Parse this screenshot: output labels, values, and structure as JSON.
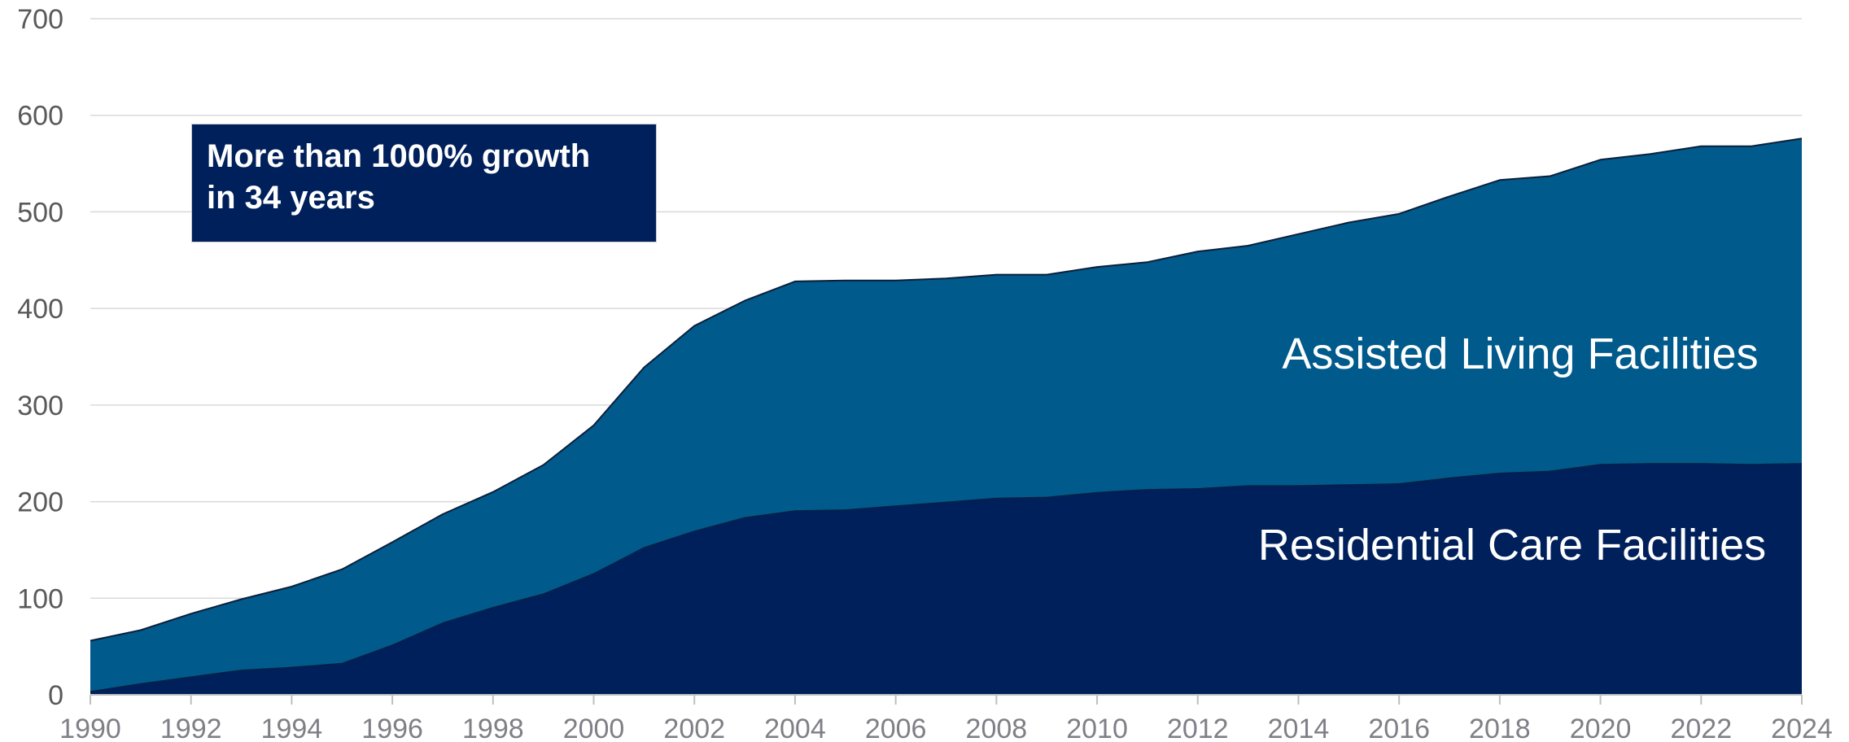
{
  "chart_data": {
    "type": "area",
    "stacked": true,
    "x": [
      1990,
      1991,
      1992,
      1993,
      1994,
      1995,
      1996,
      1997,
      1998,
      1999,
      2000,
      2001,
      2002,
      2003,
      2004,
      2005,
      2006,
      2007,
      2008,
      2009,
      2010,
      2011,
      2012,
      2013,
      2014,
      2015,
      2016,
      2017,
      2018,
      2019,
      2020,
      2021,
      2022,
      2023,
      2024
    ],
    "x_ticks": [
      "1990",
      "1992",
      "1994",
      "1996",
      "1998",
      "2000",
      "2002",
      "2004",
      "2006",
      "2008",
      "2010",
      "2012",
      "2014",
      "2016",
      "2018",
      "2020",
      "2022",
      "2024"
    ],
    "y_ticks": [
      "0",
      "100",
      "200",
      "300",
      "400",
      "500",
      "600",
      "700"
    ],
    "ylim": [
      0,
      700
    ],
    "grid": "horizontal",
    "series": [
      {
        "name": "Residential Care Facilities",
        "color": "#00205b",
        "values": [
          4,
          12,
          19,
          26,
          29,
          33,
          52,
          75,
          91,
          105,
          126,
          153,
          170,
          184,
          191,
          192,
          196,
          200,
          204,
          205,
          210,
          213,
          214,
          217,
          217,
          218,
          219,
          225,
          230,
          232,
          239,
          240,
          240,
          239,
          240
        ]
      },
      {
        "name": "Assisted Living Facilities",
        "color": "#005a8b",
        "values": [
          52,
          55,
          65,
          73,
          83,
          97,
          106,
          112,
          119,
          133,
          153,
          186,
          212,
          224,
          237,
          237,
          233,
          231,
          231,
          230,
          233,
          235,
          245,
          248,
          260,
          271,
          279,
          291,
          303,
          305,
          315,
          320,
          328,
          329,
          336
        ]
      }
    ],
    "annotation": "More than 1000% growth\nin 34 years",
    "annotation_color": "#00205b"
  }
}
